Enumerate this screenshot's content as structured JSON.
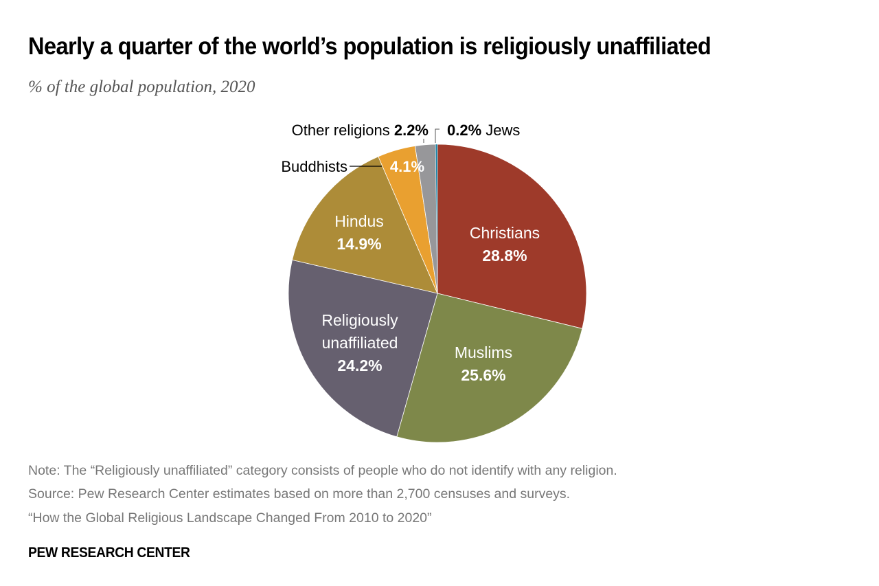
{
  "header": {
    "title": "Nearly a quarter of the world’s population is religiously unaffiliated",
    "subtitle": "% of the global population, 2020"
  },
  "chart_data": {
    "type": "pie",
    "title": "Nearly a quarter of the world’s population is religiously unaffiliated",
    "subtitle": "% of the global population, 2020",
    "start": "12 o'clock",
    "direction": "clockwise",
    "unit": "%",
    "slices": [
      {
        "key": "christians",
        "label": "Christians",
        "value": 28.8,
        "value_label": "28.8%",
        "color": "#9e3a2a",
        "label_position": "inside"
      },
      {
        "key": "muslims",
        "label": "Muslims",
        "value": 25.6,
        "value_label": "25.6%",
        "color": "#7e884a",
        "label_position": "inside"
      },
      {
        "key": "unaffiliated",
        "label": "Religiously unaffiliated",
        "label_lines": [
          "Religiously",
          "unaffiliated"
        ],
        "value": 24.2,
        "value_label": "24.2%",
        "color": "#66606f",
        "label_position": "inside"
      },
      {
        "key": "hindus",
        "label": "Hindus",
        "value": 14.9,
        "value_label": "14.9%",
        "color": "#ad8c38",
        "label_position": "inside"
      },
      {
        "key": "buddhists",
        "label": "Buddhists",
        "value": 4.1,
        "value_label": "4.1%",
        "color": "#e9a030",
        "label_position": "outside-left"
      },
      {
        "key": "other",
        "label": "Other religions",
        "value": 2.2,
        "value_label": "2.2%",
        "color": "#97979a",
        "label_position": "outside-top"
      },
      {
        "key": "jews",
        "label": "Jews",
        "value": 0.2,
        "value_label": "0.2%",
        "color": "#1e86a8",
        "label_position": "outside-top"
      }
    ]
  },
  "footer": {
    "note": "Note: The “Religiously unaffiliated” category consists of people who do not identify with any religion.",
    "source": "Source: Pew Research Center estimates based on more than 2,700 censuses and surveys.",
    "report": "“How the Global Religious Landscape Changed From 2010 to 2020”",
    "brand": "PEW RESEARCH CENTER"
  }
}
